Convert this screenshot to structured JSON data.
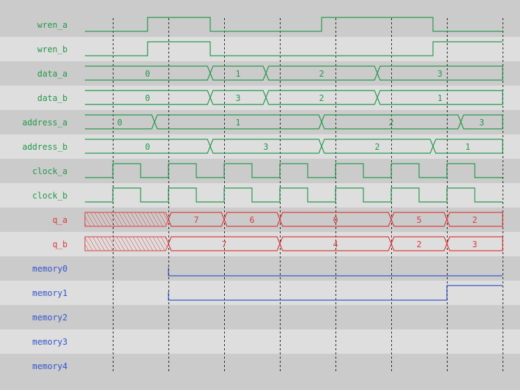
{
  "colors": {
    "green": "#22994a",
    "red": "#dd3a3a",
    "blue": "#3355cc",
    "row_dark": "#cbcbcb",
    "row_light": "#dedede",
    "gridline": "#222222"
  },
  "time_range": [
    0,
    150
  ],
  "clock_edges": [
    10,
    30,
    50,
    70,
    90,
    110,
    130,
    150
  ],
  "signals": [
    {
      "name": "wren_a",
      "type": "bit",
      "color": "green",
      "init": 0,
      "toggles": [
        22.5,
        45,
        85,
        125
      ]
    },
    {
      "name": "wren_b",
      "type": "bit",
      "color": "green",
      "init": 0,
      "toggles": [
        22.5,
        45,
        125
      ]
    },
    {
      "name": "data_a",
      "type": "bus",
      "color": "green",
      "segments": [
        {
          "from": 0,
          "to": 45,
          "value": "0"
        },
        {
          "from": 45,
          "to": 65,
          "value": "1"
        },
        {
          "from": 65,
          "to": 105,
          "value": "2"
        },
        {
          "from": 105,
          "to": 150,
          "value": "3"
        }
      ]
    },
    {
      "name": "data_b",
      "type": "bus",
      "color": "green",
      "segments": [
        {
          "from": 0,
          "to": 45,
          "value": "0"
        },
        {
          "from": 45,
          "to": 65,
          "value": "3"
        },
        {
          "from": 65,
          "to": 105,
          "value": "2"
        },
        {
          "from": 105,
          "to": 150,
          "value": "1"
        }
      ]
    },
    {
      "name": "address_a",
      "type": "bus",
      "color": "green",
      "segments": [
        {
          "from": 0,
          "to": 25,
          "value": "0"
        },
        {
          "from": 25,
          "to": 85,
          "value": "1"
        },
        {
          "from": 85,
          "to": 135,
          "value": "2"
        },
        {
          "from": 135,
          "to": 150,
          "value": "3"
        }
      ]
    },
    {
      "name": "address_b",
      "type": "bus",
      "color": "green",
      "segments": [
        {
          "from": 0,
          "to": 45,
          "value": "0"
        },
        {
          "from": 45,
          "to": 85,
          "value": "3"
        },
        {
          "from": 85,
          "to": 125,
          "value": "2"
        },
        {
          "from": 125,
          "to": 150,
          "value": "1"
        }
      ]
    },
    {
      "name": "clock_a",
      "type": "bit",
      "color": "green",
      "init": 0,
      "toggles": [
        10,
        20,
        30,
        40,
        50,
        60,
        70,
        80,
        90,
        100,
        110,
        120,
        130,
        140
      ]
    },
    {
      "name": "clock_b",
      "type": "bit",
      "color": "green",
      "init": 0,
      "toggles": [
        10,
        20,
        30,
        40,
        50,
        60,
        70,
        80,
        90,
        100,
        110,
        120,
        130,
        140
      ]
    },
    {
      "name": "q_a",
      "type": "bus",
      "color": "red",
      "segments": [
        {
          "from": 0,
          "to": 30,
          "value": null
        },
        {
          "from": 30,
          "to": 50,
          "value": "7"
        },
        {
          "from": 50,
          "to": 70,
          "value": "6"
        },
        {
          "from": 70,
          "to": 110,
          "value": "0"
        },
        {
          "from": 110,
          "to": 130,
          "value": "5"
        },
        {
          "from": 130,
          "to": 150,
          "value": "2"
        }
      ]
    },
    {
      "name": "q_b",
      "type": "bus",
      "color": "red",
      "segments": [
        {
          "from": 0,
          "to": 30,
          "value": null
        },
        {
          "from": 30,
          "to": 70,
          "value": "7"
        },
        {
          "from": 70,
          "to": 110,
          "value": "4"
        },
        {
          "from": 110,
          "to": 130,
          "value": "2"
        },
        {
          "from": 130,
          "to": 150,
          "value": "3"
        }
      ]
    },
    {
      "name": "memory0",
      "type": "analog",
      "color": "blue",
      "steps": [
        {
          "t": 30,
          "level": 0
        }
      ]
    },
    {
      "name": "memory1",
      "type": "analog",
      "color": "blue",
      "steps": [
        {
          "t": 30,
          "level": 0
        },
        {
          "t": 130,
          "level": 1
        }
      ]
    },
    {
      "name": "memory2",
      "type": "analog",
      "color": "blue",
      "steps": []
    },
    {
      "name": "memory3",
      "type": "analog",
      "color": "blue",
      "steps": []
    },
    {
      "name": "memory4",
      "type": "analog",
      "color": "blue",
      "steps": []
    }
  ]
}
